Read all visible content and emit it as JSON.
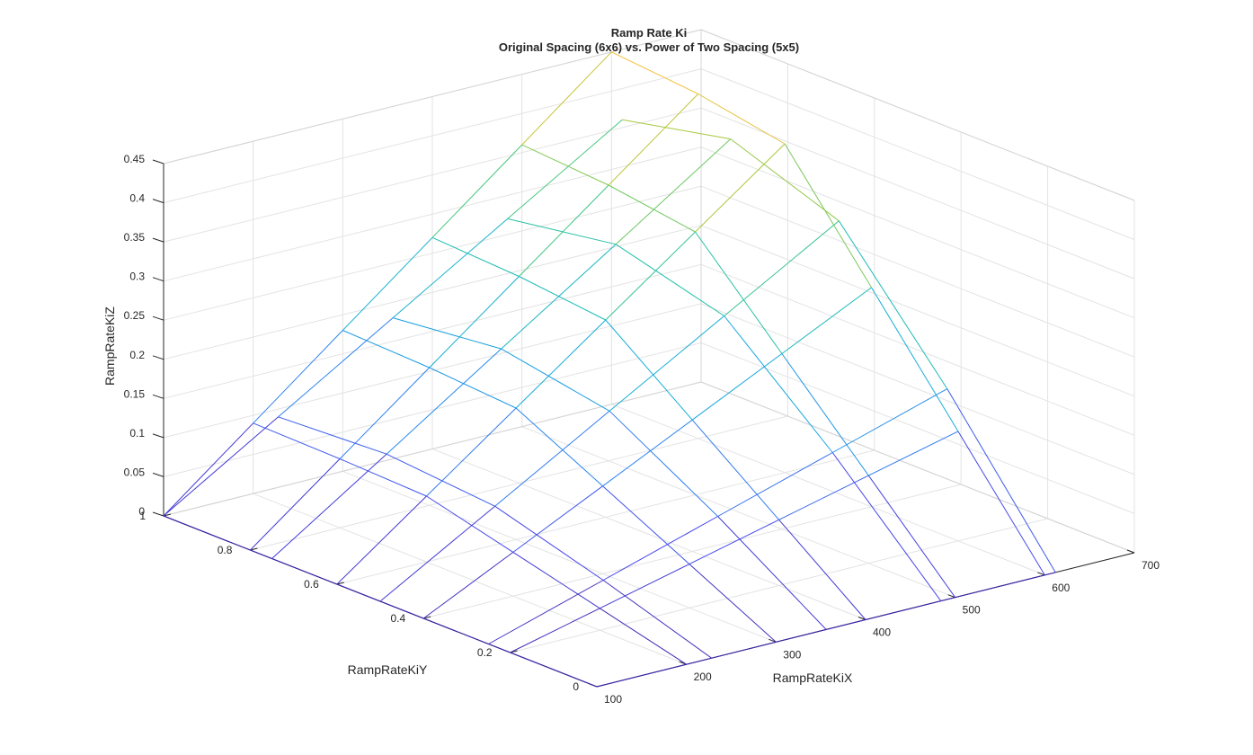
{
  "chart_data": {
    "type": "surface-mesh-3d",
    "title": "Ramp Rate Ki",
    "subtitle": "Original Spacing (6x6) vs. Power of Two Spacing (5x5)",
    "xlabel": "RampRateKiX",
    "ylabel": "RampRateKiY",
    "zlabel": "RampRateKiZ",
    "xlim": [
      100,
      700
    ],
    "ylim": [
      0,
      1
    ],
    "zlim": [
      0,
      0.45
    ],
    "x_ticks": [
      "100",
      "200",
      "300",
      "400",
      "500",
      "600",
      "700"
    ],
    "y_ticks": [
      "0",
      "0.2",
      "0.4",
      "0.6",
      "0.8",
      "1"
    ],
    "z_ticks": [
      "0",
      "0.05",
      "0.1",
      "0.15",
      "0.2",
      "0.25",
      "0.3",
      "0.35",
      "0.4",
      "0.45"
    ],
    "grid": true,
    "colormap": "parula",
    "series": [
      {
        "x": [
          100,
          200,
          300,
          400,
          500,
          600
        ],
        "y": [
          0,
          0.2,
          0.4,
          0.6,
          0.8,
          1
        ],
        "z": [
          [
            0.0,
            0.0,
            0.0,
            0.0,
            0.0,
            0.0
          ],
          [
            0.0,
            0.028,
            0.056,
            0.084,
            0.112,
            0.14
          ],
          [
            0.0,
            0.056,
            0.112,
            0.168,
            0.224,
            0.28
          ],
          [
            0.0,
            0.084,
            0.168,
            0.252,
            0.336,
            0.42
          ],
          [
            0.0,
            0.088,
            0.176,
            0.264,
            0.352,
            0.44
          ],
          [
            0.0,
            0.09,
            0.18,
            0.27,
            0.36,
            0.45
          ]
        ]
      },
      {
        "x": [
          100,
          228,
          356,
          484,
          612
        ],
        "y": [
          0,
          0.25,
          0.5,
          0.75,
          1
        ],
        "z": [
          [
            0.0,
            0.0,
            0.0,
            0.0,
            0.0
          ],
          [
            0.0,
            0.045,
            0.09,
            0.135,
            0.18
          ],
          [
            0.0,
            0.085,
            0.17,
            0.255,
            0.34
          ],
          [
            0.0,
            0.097,
            0.195,
            0.292,
            0.39
          ],
          [
            0.0,
            0.09,
            0.18,
            0.27,
            0.36
          ]
        ]
      }
    ]
  }
}
